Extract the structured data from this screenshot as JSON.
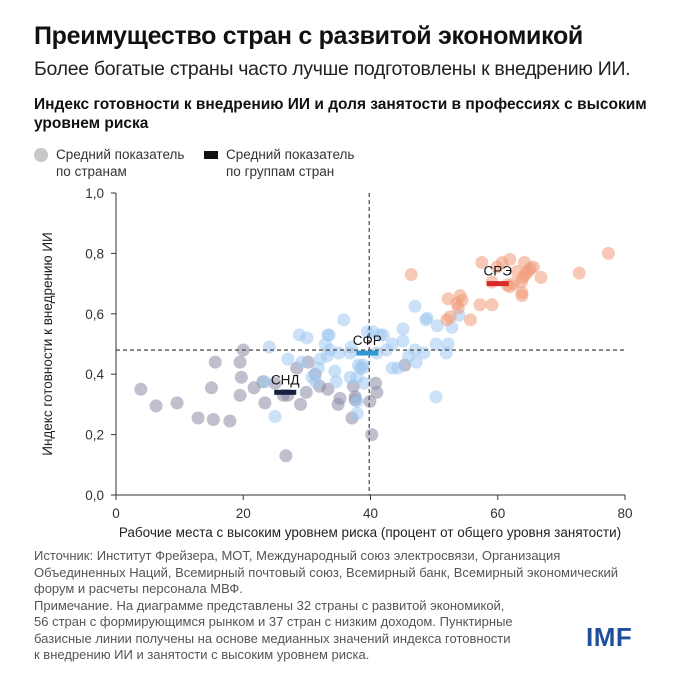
{
  "header": {
    "title": "Преимущество стран с развитой экономикой",
    "subtitle": "Более богатые страны часто лучше подготовлены к внедрению ИИ."
  },
  "legend": {
    "country_line1": "Средний показатель",
    "country_line2": "по странам",
    "group_line1": "Средний показатель",
    "group_line2": "по группам стран"
  },
  "chart_data": {
    "type": "scatter",
    "title": "Индекс готовности к внедрению ИИ и доля занятости в профессиях с высоким уровнем риска",
    "xlabel": "Рабочие места с высоким уровнем риска (процент от общего уровня занятости)",
    "ylabel": "Индекс готовности к внедрению ИИ",
    "xlim": [
      0,
      80
    ],
    "ylim": [
      0,
      1.0
    ],
    "xticks": [
      "0",
      "20",
      "40",
      "60",
      "80"
    ],
    "yticks": [
      "0,0",
      "0,2",
      "0,4",
      "0,6",
      "0,8",
      "1,0"
    ],
    "grid": false,
    "medians": {
      "x": 39.8,
      "y": 0.48
    },
    "colors": {
      "low_income": "#8a8aa6",
      "emerging": "#9fc8f0",
      "advanced": "#f09a78"
    },
    "series": [
      {
        "name": "Страны с низким доходом",
        "color": "#8a8aa6",
        "points": [
          [
            3.9,
            0.35
          ],
          [
            6.3,
            0.295
          ],
          [
            9.6,
            0.305
          ],
          [
            12.9,
            0.255
          ],
          [
            15.3,
            0.25
          ],
          [
            15.0,
            0.355
          ],
          [
            17.9,
            0.245
          ],
          [
            15.6,
            0.44
          ],
          [
            19.7,
            0.39
          ],
          [
            20,
            0.48
          ],
          [
            19.5,
            0.44
          ],
          [
            19.5,
            0.33
          ],
          [
            21.7,
            0.355
          ],
          [
            23.4,
            0.305
          ],
          [
            23.1,
            0.375
          ],
          [
            26.7,
            0.13
          ],
          [
            26.3,
            0.33
          ],
          [
            27,
            0.33
          ],
          [
            28.4,
            0.42
          ],
          [
            30.2,
            0.44
          ],
          [
            29.9,
            0.34
          ],
          [
            31.3,
            0.4
          ],
          [
            33.3,
            0.35
          ],
          [
            35.2,
            0.32
          ],
          [
            34.9,
            0.3
          ],
          [
            37.3,
            0.36
          ],
          [
            37.6,
            0.325
          ],
          [
            37.6,
            0.315
          ],
          [
            37.1,
            0.255
          ],
          [
            39.9,
            0.31
          ],
          [
            40.2,
            0.2
          ],
          [
            40.8,
            0.37
          ],
          [
            41,
            0.34
          ],
          [
            45.4,
            0.43
          ],
          [
            29,
            0.3
          ],
          [
            32,
            0.36
          ],
          [
            25,
            0.37
          ]
        ]
      },
      {
        "name": "Страны с формирующимся рынком",
        "color": "#9fc8f0",
        "points": [
          [
            35.8,
            0.58
          ],
          [
            33.3,
            0.53
          ],
          [
            33.5,
            0.53
          ],
          [
            32.9,
            0.5
          ],
          [
            33.6,
            0.48
          ],
          [
            33.2,
            0.46
          ],
          [
            32.1,
            0.45
          ],
          [
            31.8,
            0.42
          ],
          [
            29.2,
            0.44
          ],
          [
            28.8,
            0.53
          ],
          [
            24.1,
            0.49
          ],
          [
            23.4,
            0.375
          ],
          [
            25,
            0.26
          ],
          [
            30.8,
            0.39
          ],
          [
            31.4,
            0.375
          ],
          [
            34.4,
            0.41
          ],
          [
            34.6,
            0.375
          ],
          [
            36.8,
            0.39
          ],
          [
            37.9,
            0.39
          ],
          [
            37,
            0.49
          ],
          [
            36.8,
            0.47
          ],
          [
            38.1,
            0.43
          ],
          [
            38.8,
            0.42
          ],
          [
            37.9,
            0.27
          ],
          [
            37.9,
            0.31
          ],
          [
            39.5,
            0.54
          ],
          [
            40.4,
            0.54
          ],
          [
            41.5,
            0.53
          ],
          [
            42,
            0.53
          ],
          [
            43.4,
            0.5
          ],
          [
            45.1,
            0.55
          ],
          [
            45.1,
            0.51
          ],
          [
            47,
            0.48
          ],
          [
            48.4,
            0.47
          ],
          [
            47.2,
            0.44
          ],
          [
            43.4,
            0.42
          ],
          [
            44.3,
            0.42
          ],
          [
            50.3,
            0.325
          ],
          [
            50.3,
            0.5
          ],
          [
            51.9,
            0.47
          ],
          [
            52.2,
            0.5
          ],
          [
            50.5,
            0.56
          ],
          [
            48.7,
            0.58
          ],
          [
            48.9,
            0.585
          ],
          [
            47,
            0.625
          ],
          [
            52.8,
            0.555
          ],
          [
            53.9,
            0.595
          ],
          [
            38.4,
            0.42
          ],
          [
            38.8,
            0.43
          ],
          [
            27,
            0.45
          ],
          [
            30,
            0.52
          ],
          [
            35,
            0.47
          ],
          [
            41,
            0.47
          ],
          [
            46,
            0.46
          ],
          [
            39,
            0.37
          ],
          [
            42.5,
            0.48
          ]
        ]
      },
      {
        "name": "Страны с развитой экономикой",
        "color": "#f09a78",
        "points": [
          [
            46.4,
            0.73
          ],
          [
            57.5,
            0.77
          ],
          [
            60.7,
            0.77
          ],
          [
            61.9,
            0.78
          ],
          [
            64.2,
            0.77
          ],
          [
            65.6,
            0.755
          ],
          [
            65.1,
            0.75
          ],
          [
            64.8,
            0.74
          ],
          [
            64.3,
            0.73
          ],
          [
            64,
            0.72
          ],
          [
            66.8,
            0.72
          ],
          [
            63.7,
            0.705
          ],
          [
            62.4,
            0.7
          ],
          [
            61.9,
            0.69
          ],
          [
            63.8,
            0.66
          ],
          [
            63.8,
            0.67
          ],
          [
            59.1,
            0.705
          ],
          [
            59.1,
            0.63
          ],
          [
            57.2,
            0.63
          ],
          [
            54.1,
            0.66
          ],
          [
            52.2,
            0.65
          ],
          [
            53.6,
            0.635
          ],
          [
            53.8,
            0.62
          ],
          [
            54.4,
            0.645
          ],
          [
            52.5,
            0.59
          ],
          [
            52,
            0.58
          ],
          [
            55.7,
            0.58
          ],
          [
            72.8,
            0.735
          ],
          [
            77.4,
            0.8
          ],
          [
            59.9,
            0.755
          ],
          [
            61.5,
            0.695
          ],
          [
            63,
            0.74
          ]
        ]
      }
    ],
    "group_averages": [
      {
        "label": "СНД",
        "x": 26.6,
        "y": 0.34,
        "color": "#17203f"
      },
      {
        "label": "СФР",
        "x": 39.5,
        "y": 0.47,
        "color": "#2d9ad6"
      },
      {
        "label": "СРЭ",
        "x": 60.0,
        "y": 0.7,
        "color": "#d9282b"
      }
    ]
  },
  "footer": {
    "source": "Источник: Институт Фрейзера, МОТ, Международный союз электросвязи, Организация Объединенных Наций, Всемирный почтовый союз, Всемирный банк, Всемирный экономический форум и расчеты персонала МВФ.",
    "note": "Примечание. На диаграмме представлены 32 страны с развитой экономикой, 56 стран с формирующимся рынком и 37 стран с низким доходом. Пунктирные базисные линии получены на основе медианных значений индекса готовности к внедрению ИИ и занятости с высоким уровнем риска.",
    "logo": "IMF"
  }
}
